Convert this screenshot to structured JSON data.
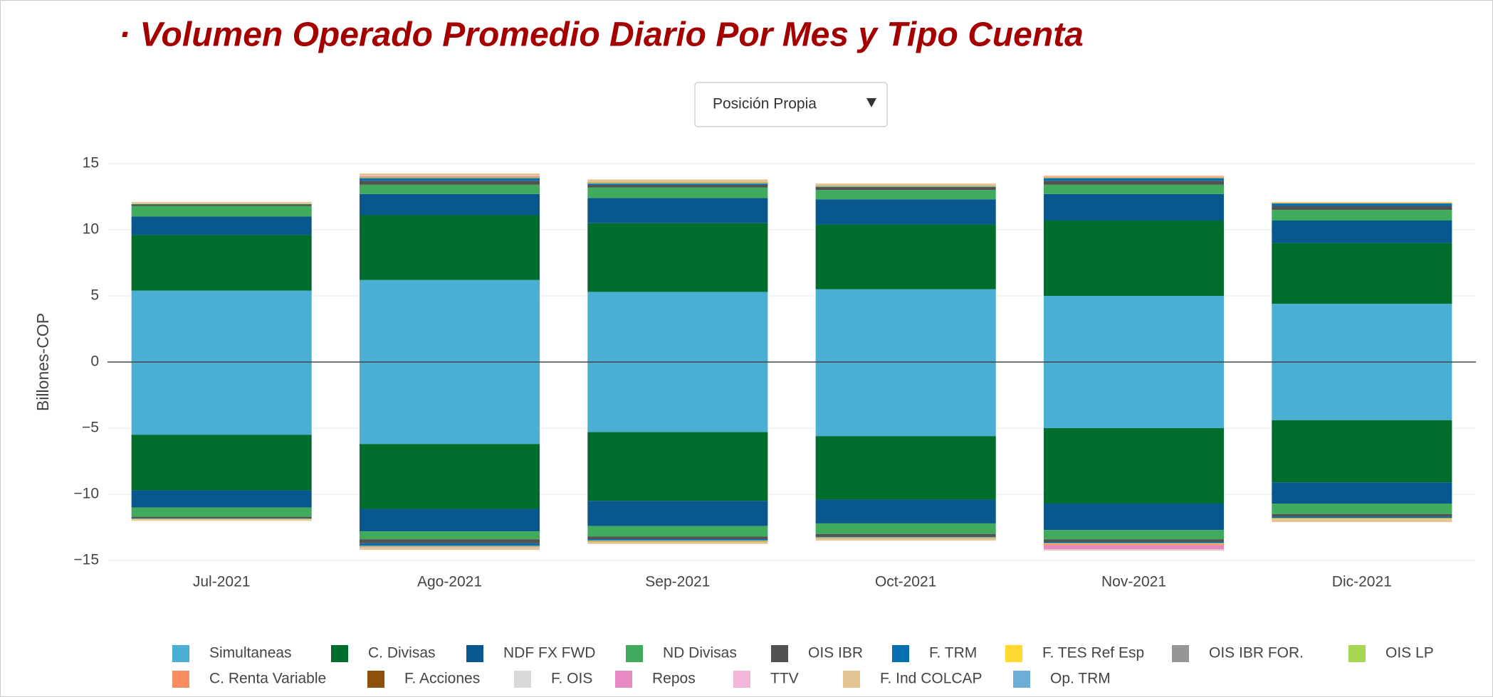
{
  "chart_data": {
    "type": "bar",
    "stacked": true,
    "title": "· Volumen Operado Promedio Diario Por Mes y Tipo Cuenta",
    "dropdown": {
      "selected": "Posición Propia"
    },
    "y_label": "Billones-COP",
    "categories": [
      "Jul-2021",
      "Ago-2021",
      "Sep-2021",
      "Oct-2021",
      "Nov-2021",
      "Dic-2021"
    ],
    "ylim": [
      -15,
      15
    ],
    "yticks": [
      15,
      10,
      5,
      0,
      {
        "value": -5,
        "label": "−5"
      },
      {
        "value": -10,
        "label": "−10"
      },
      {
        "value": -15,
        "label": "−15"
      }
    ],
    "grid": true,
    "legend": "bottom",
    "series": [
      {
        "name": "Simultaneas",
        "color": "#4bafd3",
        "values": [
          5.4,
          6.2,
          5.3,
          5.5,
          5.0,
          4.4
        ],
        "negative_values": [
          -5.5,
          -6.2,
          -5.3,
          -5.6,
          -5.0,
          -4.4
        ]
      },
      {
        "name": "C. Divisas",
        "color": "#006d2c",
        "values": [
          4.2,
          4.9,
          5.2,
          4.9,
          5.7,
          4.6
        ],
        "negative_values": [
          -4.2,
          -4.9,
          -5.2,
          -4.8,
          -5.7,
          -4.7
        ]
      },
      {
        "name": "NDF FX FWD",
        "color": "#08588e",
        "values": [
          1.4,
          1.6,
          1.9,
          1.9,
          2.0,
          1.7
        ],
        "negative_values": [
          -1.3,
          -1.7,
          -1.9,
          -1.8,
          -2.0,
          -1.6
        ]
      },
      {
        "name": "ND Divisas",
        "color": "#41ab5d",
        "values": [
          0.8,
          0.7,
          0.8,
          0.7,
          0.7,
          0.8
        ],
        "negative_values": [
          -0.7,
          -0.6,
          -0.8,
          -0.8,
          -0.7,
          -0.8
        ]
      },
      {
        "name": "OIS IBR",
        "color": "#525252",
        "values": [
          0.1,
          0.3,
          0.2,
          0.2,
          0.3,
          0.3
        ],
        "negative_values": [
          -0.1,
          -0.3,
          -0.2,
          -0.2,
          -0.2,
          -0.2
        ]
      },
      {
        "name": "F. TRM",
        "color": "#0570b0",
        "values": [
          0.05,
          0.2,
          0.1,
          0.05,
          0.2,
          0.2
        ],
        "negative_values": [
          -0.05,
          -0.2,
          -0.1,
          -0.05,
          -0.1,
          -0.1
        ]
      },
      {
        "name": "F. TES Ref Esp",
        "color": "#ffd92f",
        "values": [
          0.05,
          0.05,
          0.05,
          0.05,
          0.05,
          0.05
        ],
        "negative_values": [
          -0.05,
          -0.05,
          -0.05,
          -0.05,
          -0.05,
          -0.05
        ]
      },
      {
        "name": "OIS IBR FOR.",
        "color": "#969696",
        "values": [
          0,
          0.05,
          0.05,
          0.05,
          0,
          0
        ],
        "negative_values": [
          0,
          -0.05,
          -0.05,
          -0.05,
          0,
          0
        ]
      },
      {
        "name": "OIS LP",
        "color": "#a6d854",
        "values": [
          0,
          0,
          0,
          0,
          0,
          0
        ],
        "negative_values": [
          0,
          0,
          0,
          0,
          0,
          0
        ]
      },
      {
        "name": "C. Renta Variable",
        "color": "#fc8d62",
        "values": [
          0,
          0.05,
          0,
          0,
          0.05,
          0
        ],
        "negative_values": [
          0,
          0,
          0,
          0,
          -0.1,
          0
        ]
      },
      {
        "name": "F. Acciones",
        "color": "#8c510a",
        "values": [
          0,
          0,
          0,
          0,
          0,
          0
        ],
        "negative_values": [
          0,
          0,
          0,
          0,
          0,
          0
        ]
      },
      {
        "name": "F. OIS",
        "color": "#d9d9d9",
        "values": [
          0,
          0,
          0,
          0,
          0,
          0
        ],
        "negative_values": [
          0,
          0,
          0,
          0,
          0,
          0
        ]
      },
      {
        "name": "Repos",
        "color": "#e78ac3",
        "values": [
          0,
          0,
          0,
          0,
          0,
          0
        ],
        "negative_values": [
          0,
          0,
          0,
          0,
          -0.3,
          0
        ]
      },
      {
        "name": "TTV",
        "color": "#f1b6da",
        "values": [
          0,
          0.05,
          0,
          0,
          0.05,
          0
        ],
        "negative_values": [
          0,
          -0.05,
          0,
          0,
          -0.05,
          0
        ]
      },
      {
        "name": "F. Ind COLCAP",
        "color": "#e5c494",
        "values": [
          0.1,
          0.15,
          0.2,
          0.15,
          0.05,
          0.05
        ],
        "negative_values": [
          -0.1,
          -0.15,
          -0.15,
          -0.15,
          -0.05,
          -0.25
        ]
      },
      {
        "name": "Op. TRM",
        "color": "#6baed6",
        "values": [
          0,
          0,
          0,
          0,
          0,
          0
        ],
        "negative_values": [
          0,
          0,
          0,
          0,
          0,
          0
        ]
      }
    ]
  }
}
